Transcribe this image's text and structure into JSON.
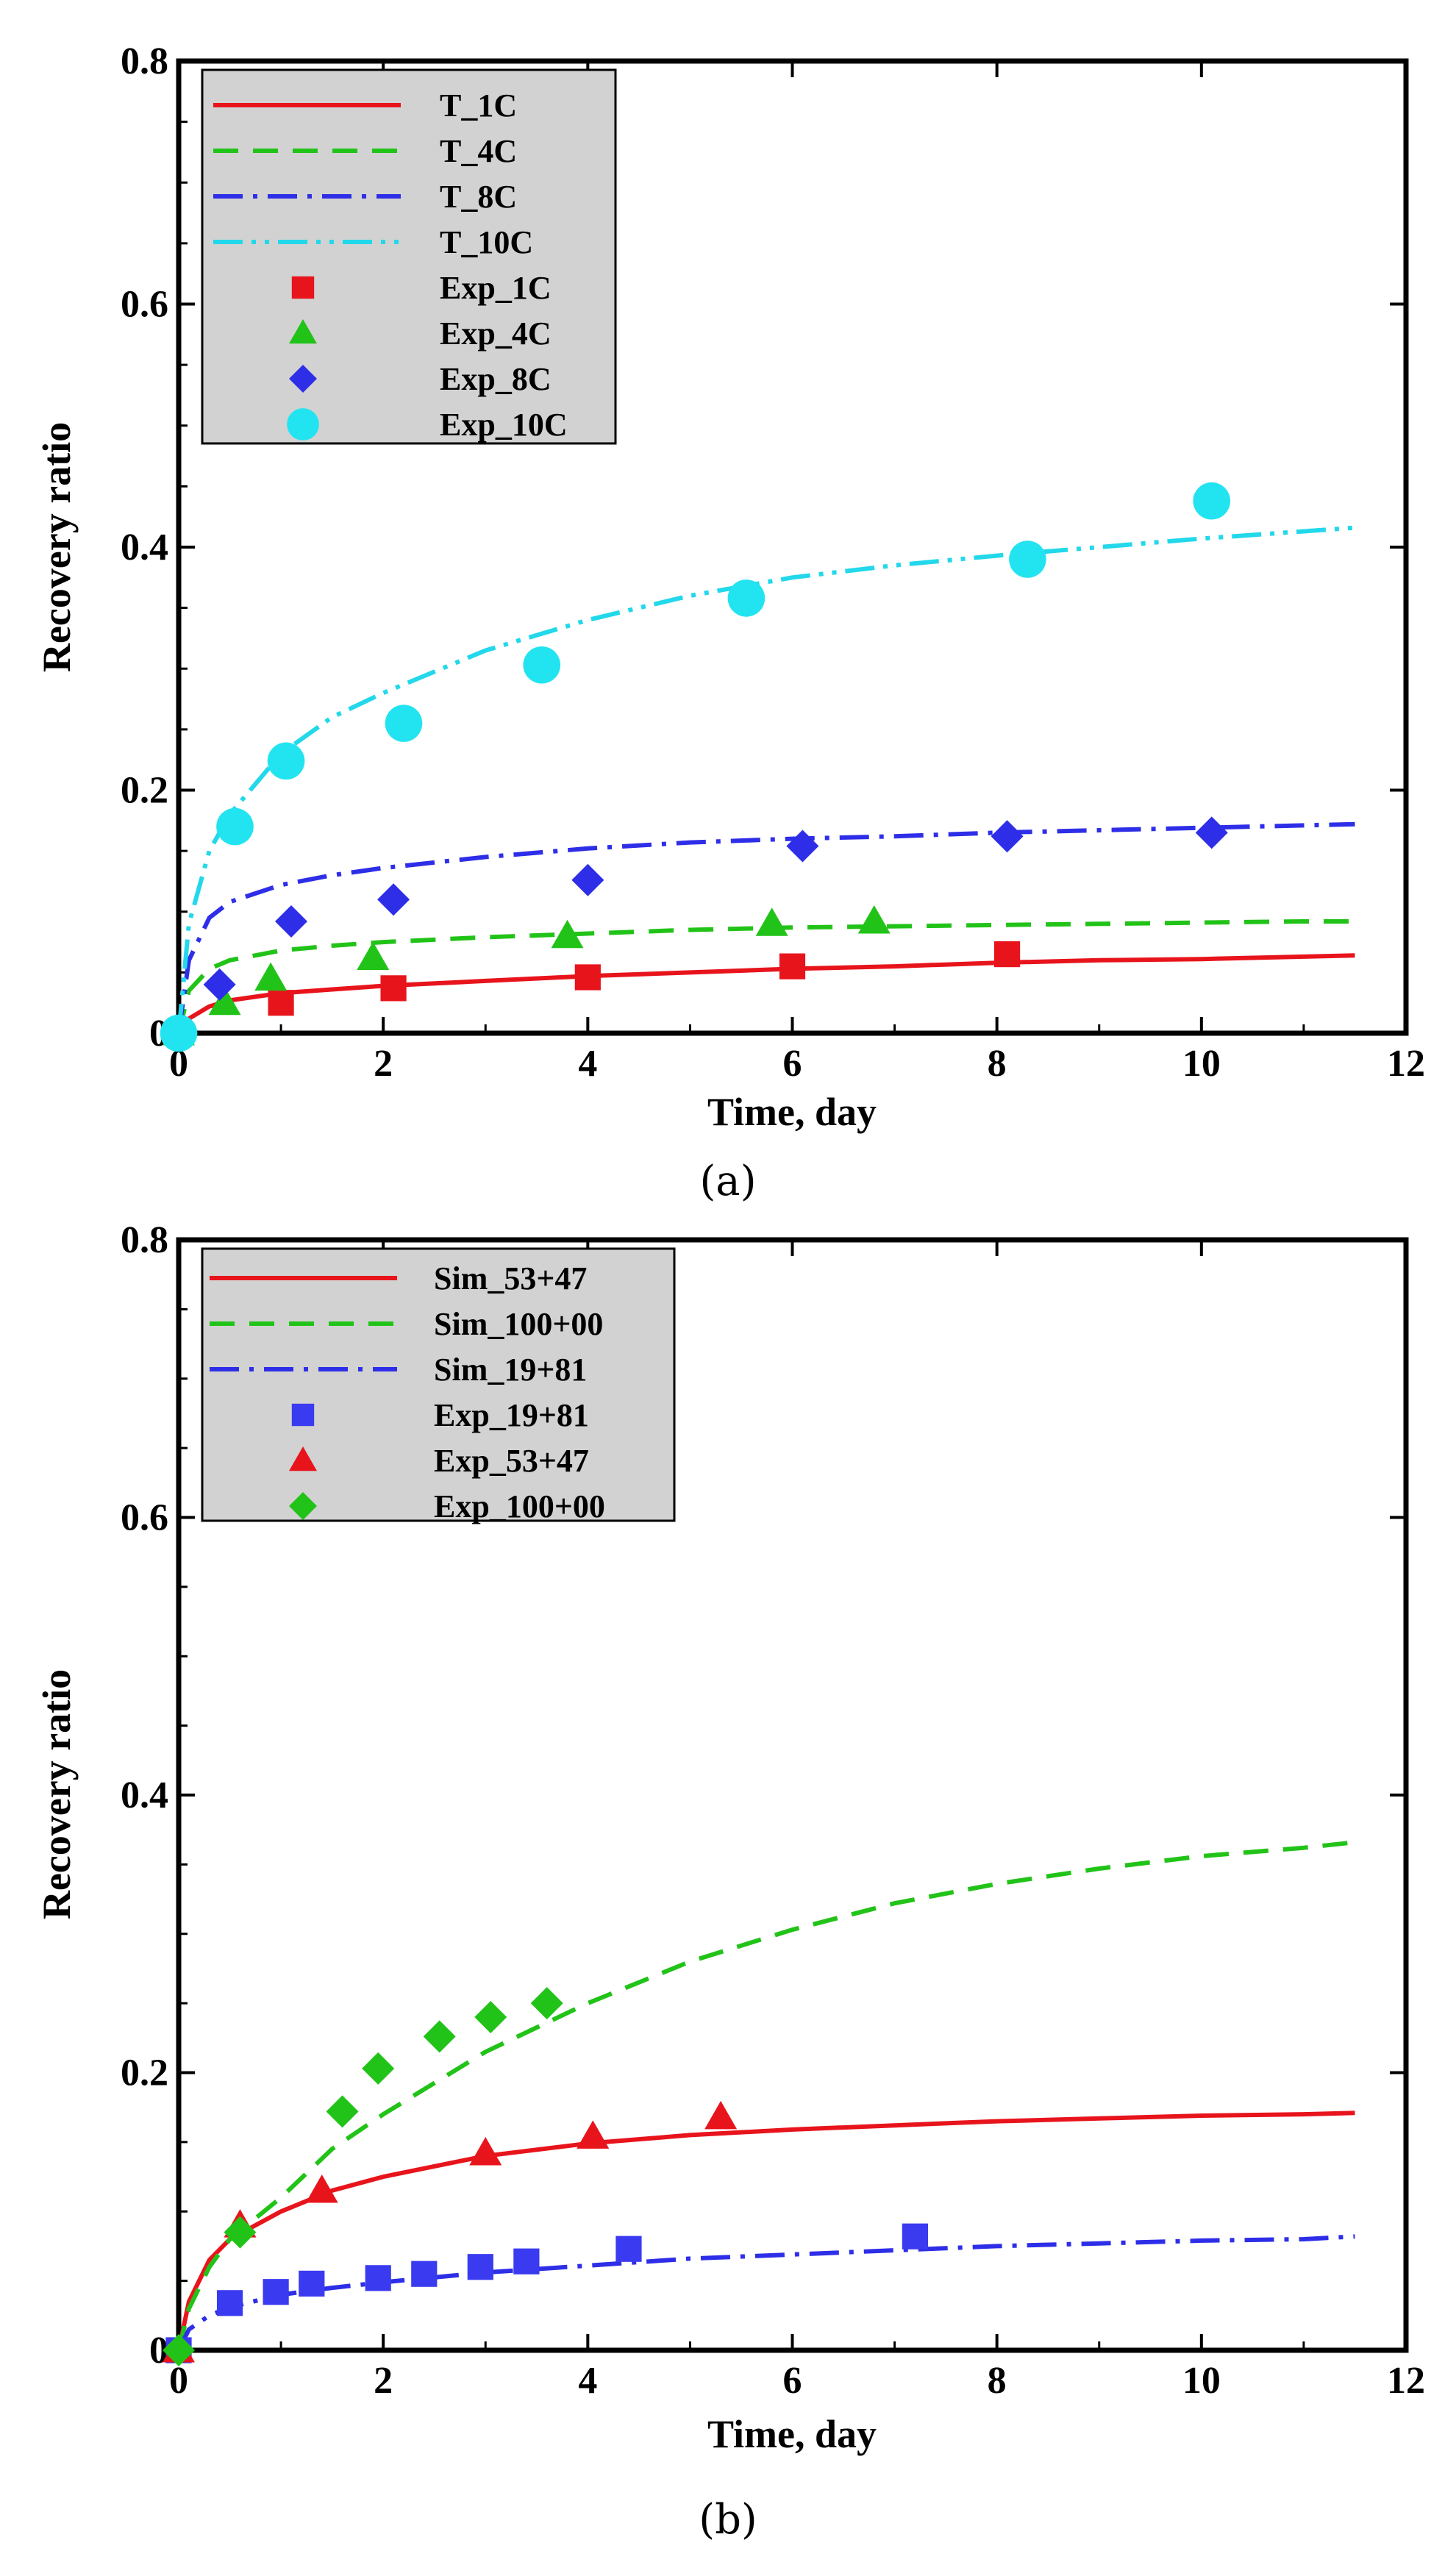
{
  "chart_data": [
    {
      "type": "line",
      "panel_label": "(a)",
      "xlabel": "Time, day",
      "ylabel": "Recovery ratio",
      "xlim": [
        0,
        12
      ],
      "ylim": [
        0,
        0.8
      ],
      "xticks": [
        0,
        2,
        4,
        6,
        8,
        10,
        12
      ],
      "yticks": [
        0,
        0.2,
        0.4,
        0.6,
        0.8
      ],
      "xtick_labels": [
        "0",
        "2",
        "4",
        "6",
        "8",
        "10",
        "12"
      ],
      "ytick_labels": [
        "0",
        "0.2",
        "0.4",
        "0.6",
        "0.8"
      ],
      "grid": false,
      "legend_position": "top-left",
      "series": [
        {
          "name": "T_1C",
          "kind": "line",
          "style": "solid",
          "color": "#e8141c",
          "x": [
            0,
            0.1,
            0.3,
            0.5,
            1,
            1.5,
            2,
            3,
            4,
            5,
            6,
            7,
            8,
            9,
            10,
            11,
            11.5
          ],
          "y": [
            0,
            0.012,
            0.022,
            0.027,
            0.033,
            0.036,
            0.039,
            0.043,
            0.047,
            0.05,
            0.053,
            0.055,
            0.058,
            0.06,
            0.061,
            0.063,
            0.064
          ]
        },
        {
          "name": "T_4C",
          "kind": "line",
          "style": "dashed",
          "color": "#22c318",
          "x": [
            0,
            0.1,
            0.3,
            0.5,
            1,
            1.5,
            2,
            3,
            4,
            5,
            6,
            7,
            8,
            9,
            10,
            11,
            11.5
          ],
          "y": [
            0,
            0.035,
            0.053,
            0.06,
            0.068,
            0.072,
            0.075,
            0.079,
            0.082,
            0.085,
            0.087,
            0.088,
            0.089,
            0.09,
            0.091,
            0.092,
            0.092
          ]
        },
        {
          "name": "T_8C",
          "kind": "line",
          "style": "dashdot",
          "color": "#2e2ee8",
          "x": [
            0,
            0.1,
            0.3,
            0.5,
            1,
            1.5,
            2,
            3,
            4,
            5,
            6,
            7,
            8,
            9,
            10,
            11,
            11.5
          ],
          "y": [
            0,
            0.06,
            0.095,
            0.108,
            0.122,
            0.13,
            0.136,
            0.145,
            0.152,
            0.157,
            0.16,
            0.162,
            0.165,
            0.167,
            0.169,
            0.171,
            0.172
          ]
        },
        {
          "name": "T_10C",
          "kind": "line",
          "style": "dashdotdot",
          "color": "#22d8ea",
          "x": [
            0,
            0.1,
            0.3,
            0.5,
            1,
            1.5,
            2,
            3,
            4,
            5,
            6,
            7,
            8,
            9,
            10,
            11,
            11.5
          ],
          "y": [
            0,
            0.09,
            0.15,
            0.18,
            0.23,
            0.26,
            0.28,
            0.315,
            0.34,
            0.36,
            0.375,
            0.385,
            0.393,
            0.4,
            0.407,
            0.413,
            0.416
          ]
        },
        {
          "name": "Exp_1C",
          "kind": "marker",
          "marker": "square",
          "color": "#e8141c",
          "x": [
            0,
            1,
            2.1,
            4,
            6,
            8.1
          ],
          "y": [
            0,
            0.025,
            0.037,
            0.046,
            0.055,
            0.065
          ]
        },
        {
          "name": "Exp_4C",
          "kind": "marker",
          "marker": "triangle",
          "color": "#22c318",
          "x": [
            0,
            0.45,
            0.9,
            1.9,
            3.8,
            5.8,
            6.8
          ],
          "y": [
            0,
            0.025,
            0.045,
            0.062,
            0.08,
            0.09,
            0.092
          ]
        },
        {
          "name": "Exp_8C",
          "kind": "marker",
          "marker": "diamond",
          "color": "#2e2ee8",
          "x": [
            0,
            0.4,
            1.1,
            2.1,
            4,
            6.1,
            8.1,
            10.1
          ],
          "y": [
            0,
            0.04,
            0.092,
            0.11,
            0.126,
            0.154,
            0.162,
            0.165
          ]
        },
        {
          "name": "Exp_10C",
          "kind": "marker",
          "marker": "circle",
          "color": "#22e4f0",
          "x": [
            0,
            0.55,
            1.05,
            2.2,
            3.55,
            5.55,
            8.3,
            10.1
          ],
          "y": [
            0,
            0.17,
            0.224,
            0.255,
            0.303,
            0.358,
            0.39,
            0.438
          ]
        }
      ]
    },
    {
      "type": "line",
      "panel_label": "(b)",
      "xlabel": "Time, day",
      "ylabel": "Recovery ratio",
      "xlim": [
        0,
        12
      ],
      "ylim": [
        0,
        0.8
      ],
      "xticks": [
        0,
        2,
        4,
        6,
        8,
        10,
        12
      ],
      "yticks": [
        0,
        0.2,
        0.4,
        0.6,
        0.8
      ],
      "xtick_labels": [
        "0",
        "2",
        "4",
        "6",
        "8",
        "10",
        "12"
      ],
      "ytick_labels": [
        "0",
        "0.2",
        "0.4",
        "0.6",
        "0.8"
      ],
      "grid": false,
      "legend_position": "top-left",
      "series": [
        {
          "name": "Sim_53+47",
          "kind": "line",
          "style": "solid",
          "color": "#e8141c",
          "x": [
            0,
            0.1,
            0.3,
            0.5,
            1,
            1.5,
            2,
            3,
            4,
            5,
            6,
            7,
            8,
            9,
            10,
            11,
            11.5
          ],
          "y": [
            0,
            0.035,
            0.065,
            0.08,
            0.1,
            0.115,
            0.125,
            0.14,
            0.149,
            0.155,
            0.159,
            0.162,
            0.165,
            0.167,
            0.169,
            0.17,
            0.171
          ]
        },
        {
          "name": "Sim_100+00",
          "kind": "line",
          "style": "dashed",
          "color": "#22c318",
          "x": [
            0,
            0.1,
            0.3,
            0.5,
            1,
            1.5,
            2,
            3,
            4,
            5,
            6,
            7,
            8,
            9,
            10,
            11,
            11.5
          ],
          "y": [
            0,
            0.03,
            0.06,
            0.08,
            0.11,
            0.145,
            0.17,
            0.215,
            0.25,
            0.28,
            0.303,
            0.322,
            0.336,
            0.347,
            0.356,
            0.362,
            0.366
          ]
        },
        {
          "name": "Sim_19+81",
          "kind": "line",
          "style": "dashdot",
          "color": "#2e2ee8",
          "x": [
            0,
            0.1,
            0.3,
            0.5,
            1,
            1.5,
            2,
            3,
            4,
            5,
            6,
            7,
            8,
            9,
            10,
            11,
            11.5
          ],
          "y": [
            0,
            0.015,
            0.025,
            0.031,
            0.04,
            0.045,
            0.049,
            0.056,
            0.061,
            0.066,
            0.069,
            0.072,
            0.075,
            0.077,
            0.079,
            0.08,
            0.082
          ]
        },
        {
          "name": "Exp_19+81",
          "kind": "marker",
          "marker": "square",
          "color": "#3a3af0",
          "x": [
            0,
            0.5,
            0.95,
            1.3,
            1.95,
            2.4,
            2.95,
            3.4,
            4.4,
            7.2
          ],
          "y": [
            0,
            0.034,
            0.042,
            0.048,
            0.052,
            0.055,
            0.06,
            0.064,
            0.073,
            0.082
          ]
        },
        {
          "name": "Exp_53+47",
          "kind": "marker",
          "marker": "triangle",
          "color": "#e8141c",
          "x": [
            0,
            0.6,
            1.4,
            3,
            4.05,
            5.3
          ],
          "y": [
            0,
            0.09,
            0.115,
            0.142,
            0.154,
            0.168
          ]
        },
        {
          "name": "Exp_100+00",
          "kind": "marker",
          "marker": "diamond",
          "color": "#22c318",
          "x": [
            0,
            0.6,
            1.6,
            1.95,
            2.55,
            3.05,
            3.6
          ],
          "y": [
            0,
            0.085,
            0.172,
            0.203,
            0.226,
            0.24,
            0.25
          ]
        }
      ]
    }
  ]
}
